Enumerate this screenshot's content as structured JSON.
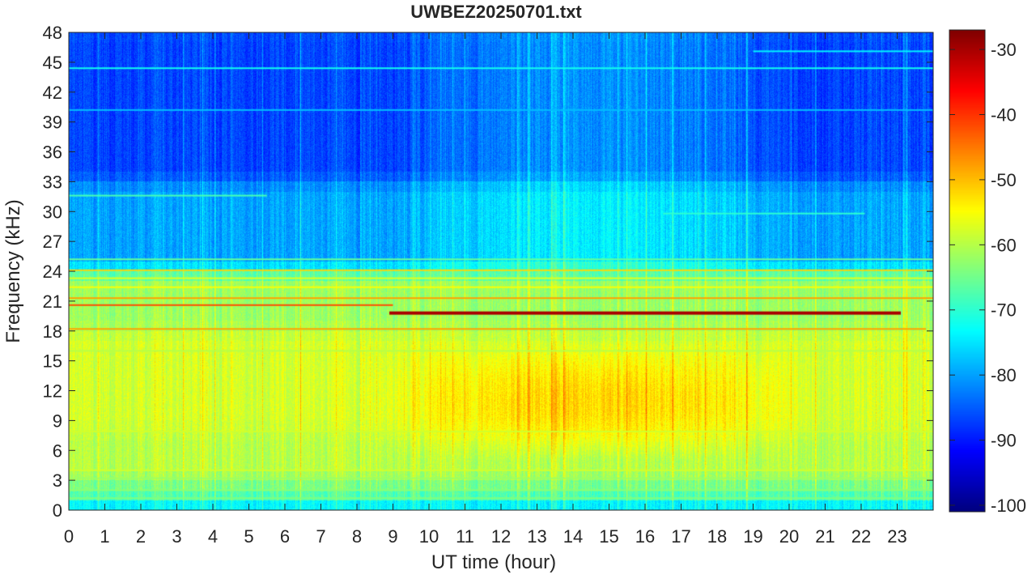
{
  "chart_data": {
    "type": "heatmap",
    "title": "UWBEZ20250701.txt",
    "xlabel": "UT time (hour)",
    "ylabel": "Frequency (kHz)",
    "xlim": [
      0,
      24
    ],
    "ylim": [
      0,
      48
    ],
    "x_ticks": [
      0,
      1,
      2,
      3,
      4,
      5,
      6,
      7,
      8,
      9,
      10,
      11,
      12,
      13,
      14,
      15,
      16,
      17,
      18,
      19,
      20,
      21,
      22,
      23
    ],
    "y_ticks": [
      0,
      3,
      6,
      9,
      12,
      15,
      18,
      21,
      24,
      27,
      30,
      33,
      36,
      39,
      42,
      45,
      48
    ],
    "colorbar": {
      "colormap": "jet",
      "range": [
        -101,
        -27
      ],
      "ticks": [
        -100,
        -90,
        -80,
        -70,
        -60,
        -50,
        -40,
        -30
      ]
    },
    "features": {
      "background_levels": [
        {
          "freq_range": [
            0,
            1
          ],
          "level": -72
        },
        {
          "freq_range": [
            1,
            3
          ],
          "level": -66
        },
        {
          "freq_range": [
            3,
            8
          ],
          "level": -60
        },
        {
          "freq_range": [
            8,
            18
          ],
          "level": -58
        },
        {
          "freq_range": [
            18,
            24
          ],
          "level": -62
        },
        {
          "freq_range": [
            24,
            33
          ],
          "level": -80
        },
        {
          "freq_range": [
            33,
            48
          ],
          "level": -87
        }
      ],
      "daytime_enhancement": {
        "time_range": [
          8,
          21
        ],
        "freq_range": [
          5,
          17
        ],
        "peak_level": -50
      },
      "horizontal_lines": [
        {
          "freq": 19.8,
          "time_range": [
            8.9,
            23.1
          ],
          "level": -30
        },
        {
          "freq": 18.2,
          "time_range": [
            0,
            23.8
          ],
          "level": -48
        },
        {
          "freq": 20.6,
          "time_range": [
            0,
            9
          ],
          "level": -42
        },
        {
          "freq": 21.3,
          "time_range": [
            0,
            24
          ],
          "level": -48
        },
        {
          "freq": 22.4,
          "time_range": [
            0,
            24
          ],
          "level": -55
        },
        {
          "freq": 23.3,
          "time_range": [
            0,
            24
          ],
          "level": -57
        },
        {
          "freq": 24.1,
          "time_range": [
            0,
            24
          ],
          "level": -52
        },
        {
          "freq": 25.2,
          "time_range": [
            0,
            24
          ],
          "level": -66
        },
        {
          "freq": 4.0,
          "time_range": [
            0,
            24
          ],
          "level": -58
        },
        {
          "freq": 3.2,
          "time_range": [
            0,
            24
          ],
          "level": -62
        },
        {
          "freq": 2.0,
          "time_range": [
            0,
            24
          ],
          "level": -63
        },
        {
          "freq": 1.2,
          "time_range": [
            0,
            24
          ],
          "level": -64
        },
        {
          "freq": 16.0,
          "time_range": [
            0,
            24
          ],
          "level": -60
        },
        {
          "freq": 7.9,
          "time_range": [
            0,
            24
          ],
          "level": -58
        },
        {
          "freq": 31.6,
          "time_range": [
            0,
            5.5
          ],
          "level": -68
        },
        {
          "freq": 29.8,
          "time_range": [
            16.5,
            22.1
          ],
          "level": -70
        },
        {
          "freq": 44.4,
          "time_range": [
            0,
            24
          ],
          "level": -72
        },
        {
          "freq": 40.2,
          "time_range": [
            0,
            24
          ],
          "level": -78
        },
        {
          "freq": 46.1,
          "time_range": [
            19,
            24
          ],
          "level": -74
        }
      ]
    }
  }
}
